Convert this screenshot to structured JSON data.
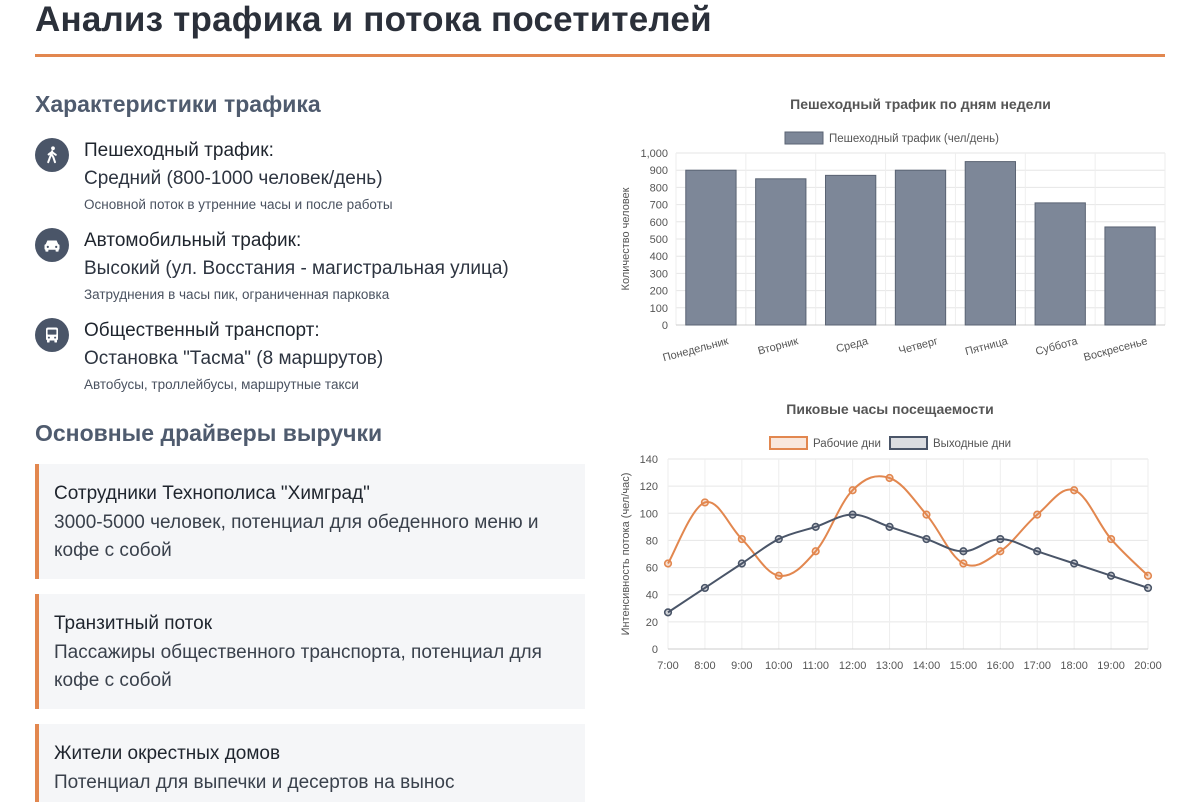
{
  "page_title": "Анализ трафика и потока посетителей",
  "traffic": {
    "heading": "Характеристики трафика",
    "items": [
      {
        "icon": "walking-person-icon",
        "label": "Пешеходный трафик:",
        "value": "Средний (800-1000 человек/день)",
        "note": "Основной поток в утренние часы и после работы"
      },
      {
        "icon": "car-icon",
        "label": "Автомобильный трафик:",
        "value": "Высокий (ул. Восстания - магистральная улица)",
        "note": "Затруднения в часы пик, ограниченная парковка"
      },
      {
        "icon": "bus-icon",
        "label": "Общественный транспорт:",
        "value": "Остановка \"Тасма\" (8 маршрутов)",
        "note": "Автобусы, троллейбусы, маршрутные такси"
      }
    ]
  },
  "drivers": {
    "heading": "Основные драйверы выручки",
    "items": [
      {
        "title": "Сотрудники Технополиса \"Химград\"",
        "text": "3000-5000 человек, потенциал для обеденного меню и кофе с собой"
      },
      {
        "title": "Транзитный поток",
        "text": "Пассажиры общественного транспорта, потенциал для кофе с собой"
      },
      {
        "title": "Жители окрестных домов",
        "text": "Потенциал для выпечки и десертов на вынос"
      }
    ]
  },
  "colors": {
    "accent": "#e2874f",
    "bar": "#7d8798",
    "dark_line": "#4a5568"
  },
  "chart_data": [
    {
      "type": "bar",
      "title": "Пешеходный трафик по дням недели",
      "legend": "Пешеходный трафик (чел/день)",
      "legend_position": "top",
      "categories": [
        "Понедельник",
        "Вторник",
        "Среда",
        "Четверг",
        "Пятница",
        "Суббота",
        "Воскресенье"
      ],
      "values": [
        900,
        850,
        870,
        900,
        950,
        710,
        570
      ],
      "xlabel": "",
      "ylabel": "Количество человек",
      "ylim": [
        0,
        1000
      ],
      "yticks": [
        "0",
        "100",
        "200",
        "300",
        "400",
        "500",
        "600",
        "700",
        "800",
        "900",
        "1,000"
      ],
      "grid": true
    },
    {
      "type": "line",
      "title": "Пиковые часы посещаемости",
      "legend_position": "top",
      "categories": [
        "7:00",
        "8:00",
        "9:00",
        "10:00",
        "11:00",
        "12:00",
        "13:00",
        "14:00",
        "15:00",
        "16:00",
        "17:00",
        "18:00",
        "19:00",
        "20:00"
      ],
      "series": [
        {
          "name": "Рабочие дни",
          "color": "#e2874f",
          "values": [
            63,
            108,
            81,
            54,
            72,
            117,
            126,
            99,
            63,
            72,
            99,
            117,
            81,
            54
          ]
        },
        {
          "name": "Выходные дни",
          "color": "#4a5568",
          "values": [
            27,
            45,
            63,
            81,
            90,
            99,
            90,
            81,
            72,
            81,
            72,
            63,
            54,
            45
          ]
        }
      ],
      "xlabel": "",
      "ylabel": "Интенсивность потока (чел/час)",
      "ylim": [
        0,
        140
      ],
      "yticks": [
        "0",
        "20",
        "40",
        "60",
        "80",
        "100",
        "120",
        "140"
      ],
      "grid": true
    }
  ]
}
